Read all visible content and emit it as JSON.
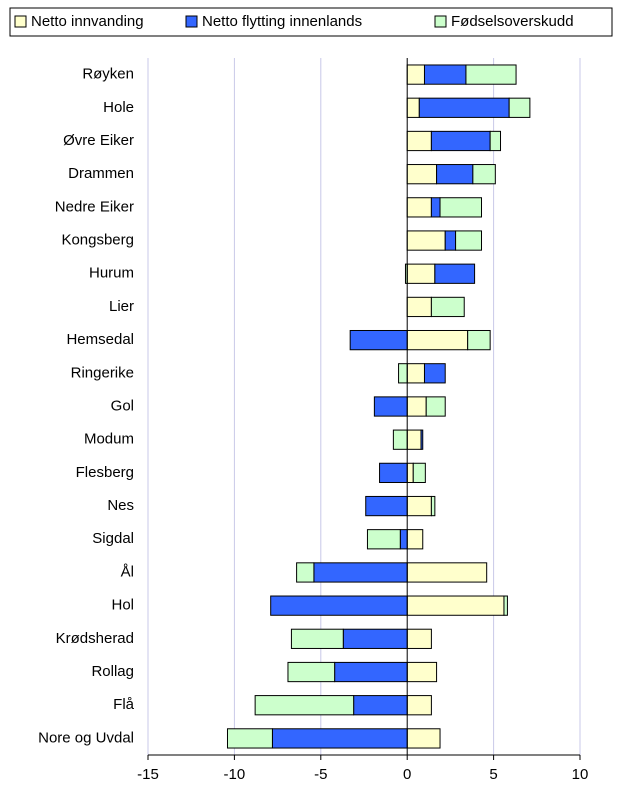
{
  "chart_data": {
    "type": "bar",
    "orientation": "horizontal",
    "stacked": true,
    "categories": [
      "Røyken",
      "Hole",
      "Øvre Eiker",
      "Drammen",
      "Nedre Eiker",
      "Kongsberg",
      "Hurum",
      "Lier",
      "Hemsedal",
      "Ringerike",
      "Gol",
      "Modum",
      "Flesberg",
      "Nes",
      "Sigdal",
      "Ål",
      "Hol",
      "Krødsherad",
      "Rollag",
      "Flå",
      "Nore og Uvdal"
    ],
    "series": [
      {
        "name": "Netto innvanding",
        "color": "#ffffcc",
        "values": [
          1.0,
          0.7,
          1.4,
          1.7,
          1.4,
          2.2,
          1.6,
          1.4,
          3.5,
          1.0,
          1.1,
          0.8,
          0.35,
          1.4,
          0.9,
          4.6,
          5.6,
          1.4,
          1.7,
          1.4,
          1.9
        ]
      },
      {
        "name": "Netto flytting innenlands",
        "color": "#3366ff",
        "values": [
          2.4,
          5.2,
          3.4,
          2.1,
          0.5,
          0.6,
          2.3,
          0,
          -3.3,
          1.2,
          -1.9,
          0.1,
          -1.6,
          -2.4,
          -0.4,
          -5.4,
          -7.9,
          -3.7,
          -4.2,
          -3.1,
          -7.8
        ]
      },
      {
        "name": "Fødselsoverskudd",
        "color": "#ccffcc",
        "values": [
          2.9,
          1.2,
          0.6,
          1.3,
          2.4,
          1.5,
          -0.1,
          1.9,
          1.3,
          -0.5,
          1.1,
          -0.8,
          0.7,
          0.2,
          -1.9,
          -1.0,
          0.2,
          -3.0,
          -2.7,
          -5.7,
          -2.6
        ]
      }
    ],
    "xlim": [
      -15,
      10
    ],
    "xticks": [
      -15,
      -10,
      -5,
      0,
      5,
      10
    ],
    "grid": true,
    "legend": "top"
  }
}
